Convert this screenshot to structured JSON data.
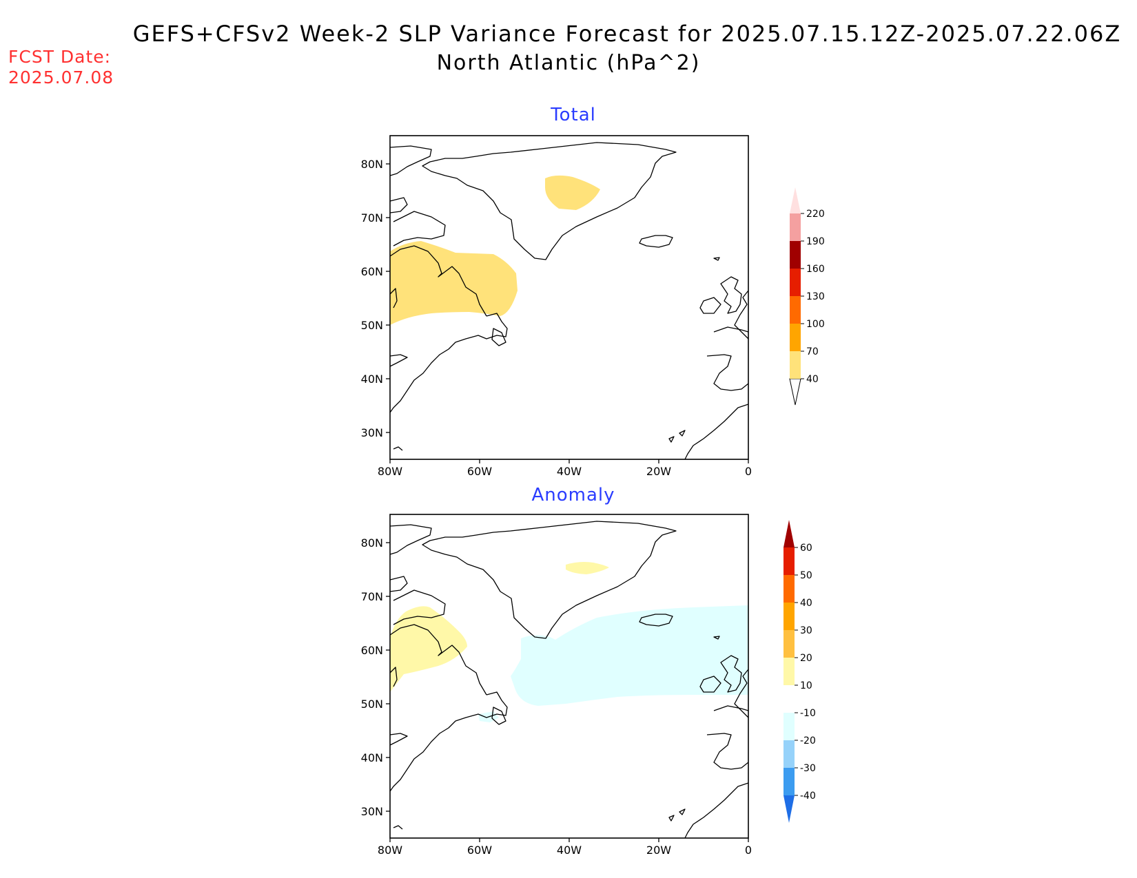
{
  "header": {
    "title": "GEFS+CFSv2 Week-2 SLP Variance Forecast for 2025.07.15.12Z-2025.07.22.06Z",
    "subtitle": "North Atlantic (hPa^2)",
    "fcst_label": "FCST Date:",
    "fcst_value": "2025.07.08"
  },
  "axes": {
    "lat_labels": [
      "80N",
      "70N",
      "60N",
      "50N",
      "40N",
      "30N"
    ],
    "lon_labels": [
      "80W",
      "60W",
      "40W",
      "20W",
      "0"
    ],
    "lat_range": [
      25,
      85
    ],
    "lon_range": [
      -80,
      0
    ]
  },
  "panels": [
    {
      "title": "Total",
      "colorbar": {
        "levels": [
          "40",
          "70",
          "100",
          "130",
          "160",
          "190",
          "220"
        ],
        "colors": [
          "#ffe27a",
          "#ffa500",
          "#ff6a00",
          "#e61e00",
          "#a00000",
          "#f4a0a0",
          "#ffe0e0"
        ]
      },
      "shaded_regions": [
        {
          "category": "40-70",
          "location": "central Greenland"
        },
        {
          "category": "40-70",
          "location": "Labrador Sea / Labrador"
        }
      ]
    },
    {
      "title": "Anomaly",
      "colorbar": {
        "levels": [
          "60",
          "50",
          "40",
          "30",
          "20",
          "10",
          "-10",
          "-20",
          "-30",
          "-40"
        ],
        "colors": [
          "#a00000",
          "#e61e00",
          "#ff6a00",
          "#ffa500",
          "#ffc040",
          "#fff8a8",
          "#ffffff",
          "#e0ffff",
          "#96d2fa",
          "#3c9cf0",
          "#1e6ee6"
        ]
      },
      "shaded_regions": [
        {
          "category": "10-20",
          "location": "central Greenland"
        },
        {
          "category": "10-20",
          "location": "Labrador"
        },
        {
          "category": "-20--10",
          "location": "North Atlantic south of Greenland to Iceland"
        }
      ]
    }
  ]
}
